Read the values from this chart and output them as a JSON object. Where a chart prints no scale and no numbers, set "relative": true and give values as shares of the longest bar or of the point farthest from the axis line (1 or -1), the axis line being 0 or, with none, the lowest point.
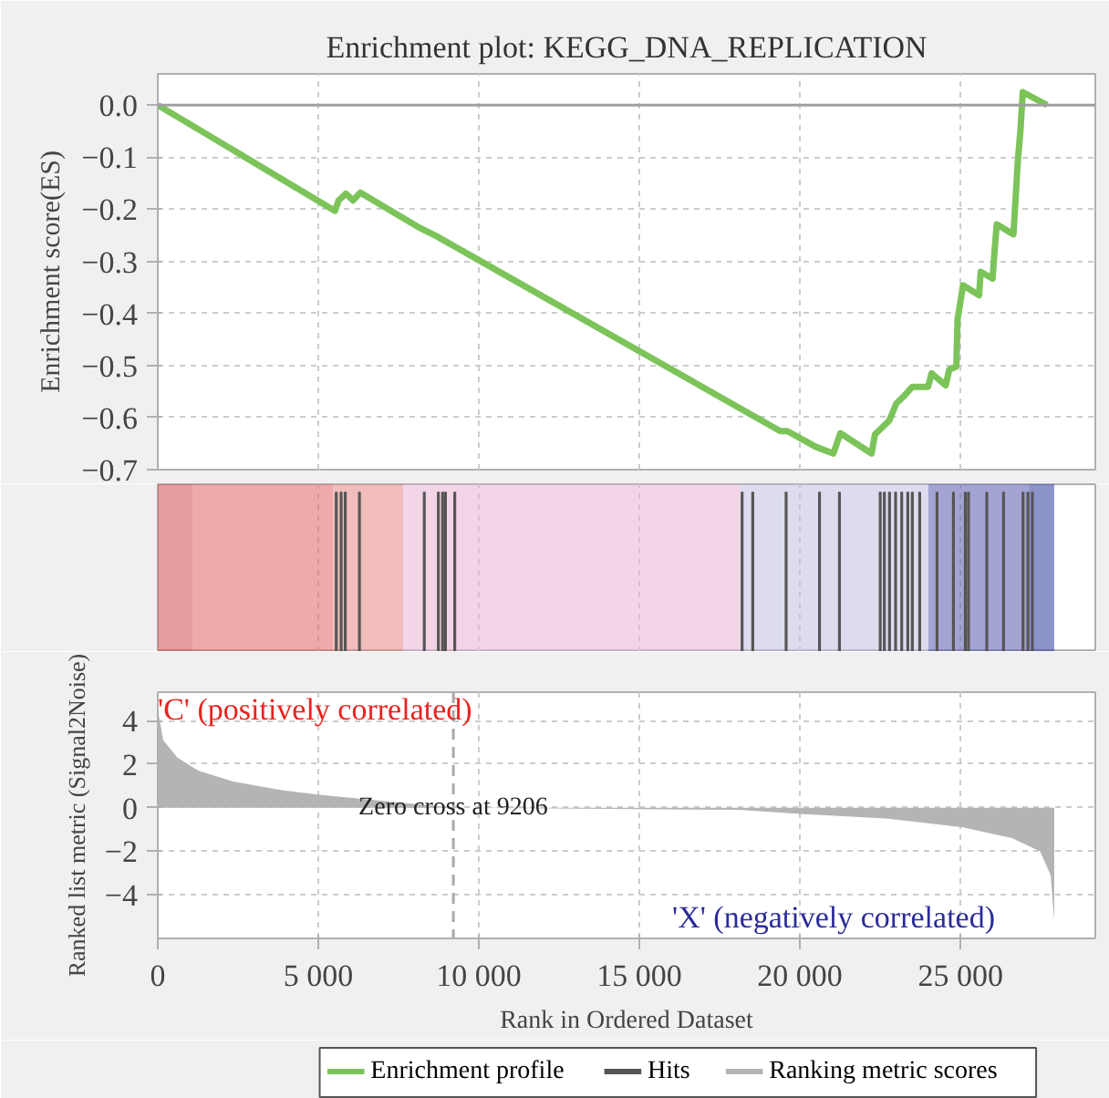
{
  "chart_data": [
    {
      "type": "line",
      "title": "Enrichment plot: KEGG_DNA_REPLICATION",
      "ylabel": "Enrichment score(ES)",
      "x": [
        0,
        5520,
        5630,
        5860,
        6080,
        6310,
        8140,
        8690,
        19390,
        19610,
        20490,
        21040,
        21260,
        22230,
        22340,
        22560,
        22780,
        23000,
        23220,
        23500,
        23990,
        24100,
        24540,
        24650,
        24870,
        24910,
        25080,
        25580,
        25630,
        26000,
        26060,
        26130,
        26650,
        26720,
        26780,
        26870,
        26940,
        27700
      ],
      "series": [
        {
          "name": "Enrichment profile",
          "color": "#7cc45a",
          "values": [
            0,
            -0.203,
            -0.183,
            -0.17,
            -0.183,
            -0.168,
            -0.235,
            -0.252,
            -0.626,
            -0.626,
            -0.656,
            -0.669,
            -0.63,
            -0.669,
            -0.632,
            -0.619,
            -0.606,
            -0.573,
            -0.56,
            -0.541,
            -0.541,
            -0.515,
            -0.538,
            -0.508,
            -0.502,
            -0.411,
            -0.346,
            -0.365,
            -0.32,
            -0.333,
            -0.281,
            -0.229,
            -0.248,
            -0.177,
            -0.112,
            -0.047,
            0.025,
            0
          ]
        }
      ],
      "xlim": [
        0,
        29200
      ],
      "ylim": [
        -0.7,
        0.06
      ],
      "xticks": [
        {
          "value": 0,
          "label": null
        },
        {
          "value": 5000,
          "label": null
        },
        {
          "value": 10000,
          "label": null
        },
        {
          "value": 15000,
          "label": null
        },
        {
          "value": 20000,
          "label": null
        },
        {
          "value": 25000,
          "label": null
        }
      ],
      "yticks": [
        {
          "value": 0,
          "label": "0.0"
        },
        {
          "value": -0.1,
          "label": "−0.1"
        },
        {
          "value": -0.2,
          "label": "−0.2"
        },
        {
          "value": -0.3,
          "label": "−0.3"
        },
        {
          "value": -0.4,
          "label": "−0.4"
        },
        {
          "value": -0.5,
          "label": "−0.5"
        },
        {
          "value": -0.6,
          "label": "−0.6"
        },
        {
          "value": -0.7,
          "label": "−0.7"
        }
      ],
      "grid": true,
      "tick_labels": "y",
      "ref_lines": [
        {
          "axis": "y",
          "value": 0,
          "color": "#a0a0a0"
        }
      ]
    },
    {
      "type": "bar",
      "relative": true,
      "x": [
        5560,
        5710,
        5840,
        6280,
        8300,
        8740,
        8870,
        8960,
        9250,
        18200,
        18530,
        19570,
        20610,
        21230,
        22500,
        22630,
        22790,
        22980,
        23170,
        23360,
        23500,
        23730,
        24270,
        24780,
        25150,
        25250,
        25820,
        26340,
        26950,
        27100,
        27240
      ],
      "series": [
        {
          "name": "Hits",
          "color": "#555555",
          "values": [
            1,
            1,
            1,
            1,
            1,
            1,
            1,
            1,
            1,
            1,
            1,
            1,
            1,
            1,
            1,
            1,
            1,
            1,
            1,
            1,
            1,
            1,
            1,
            1,
            1,
            1,
            1,
            1,
            1,
            1,
            1
          ]
        }
      ],
      "xlim": [
        0,
        29200
      ],
      "xticks": [
        {
          "value": 0,
          "label": null
        },
        {
          "value": 5000,
          "label": null
        },
        {
          "value": 10000,
          "label": null
        },
        {
          "value": 15000,
          "label": null
        },
        {
          "value": 20000,
          "label": null
        },
        {
          "value": 25000,
          "label": null
        }
      ],
      "grid": "x",
      "tick_labels": false,
      "bands": [
        {
          "axis": "x",
          "from": 0,
          "to": 1100,
          "color": "#d24a4f"
        },
        {
          "axis": "x",
          "from": 1100,
          "to": 5460,
          "color": "#e06464"
        },
        {
          "axis": "x",
          "from": 5460,
          "to": 7640,
          "color": "#e38585"
        },
        {
          "axis": "x",
          "from": 7640,
          "to": 18150,
          "color": "#e8b4d4"
        },
        {
          "axis": "x",
          "from": 18150,
          "to": 24000,
          "color": "#c0c0e0"
        },
        {
          "axis": "x",
          "from": 24000,
          "to": 27130,
          "color": "#5a5aaf"
        },
        {
          "axis": "x",
          "from": 27130,
          "to": 27920,
          "color": "#2e3a9a"
        }
      ]
    },
    {
      "type": "area",
      "xlabel": "Rank in Ordered Dataset",
      "ylabel": "Ranked list metric (Signal2Noise)",
      "x": [
        0,
        170,
        610,
        1260,
        2350,
        3870,
        4970,
        6370,
        9206,
        18100,
        20130,
        22680,
        25080,
        26600,
        27480,
        27810,
        27920,
        27921
      ],
      "series": [
        {
          "name": "Ranking metric scores",
          "color": "#b4b4b4",
          "values": [
            4.5,
            3.1,
            2.3,
            1.7,
            1.2,
            0.8,
            0.6,
            0.4,
            0,
            -0.1,
            -0.3,
            -0.5,
            -0.9,
            -1.4,
            -2.0,
            -3.1,
            -5.2,
            0
          ]
        }
      ],
      "xlim": [
        0,
        29200
      ],
      "ylim": [
        -6.0,
        5.3
      ],
      "xticks": [
        {
          "value": 0,
          "label": "0"
        },
        {
          "value": 5000,
          "label": "5 000"
        },
        {
          "value": 10000,
          "label": "10 000"
        },
        {
          "value": 15000,
          "label": "15 000"
        },
        {
          "value": 20000,
          "label": "20 000"
        },
        {
          "value": 25000,
          "label": "25 000"
        }
      ],
      "yticks": [
        {
          "value": 4,
          "label": "4"
        },
        {
          "value": 2,
          "label": "2"
        },
        {
          "value": 0,
          "label": "0"
        },
        {
          "value": -2,
          "label": "−2"
        },
        {
          "value": -4,
          "label": "−4"
        }
      ],
      "grid": true,
      "ref_lines": [
        {
          "axis": "x",
          "value": 9206,
          "label": "Zero cross at 9206",
          "line_style": "dashed",
          "color": "#aaaaaa"
        }
      ],
      "annotations": [
        "'C' (positively correlated)",
        "'X' (negatively correlated)"
      ],
      "legend": "bottom"
    }
  ]
}
